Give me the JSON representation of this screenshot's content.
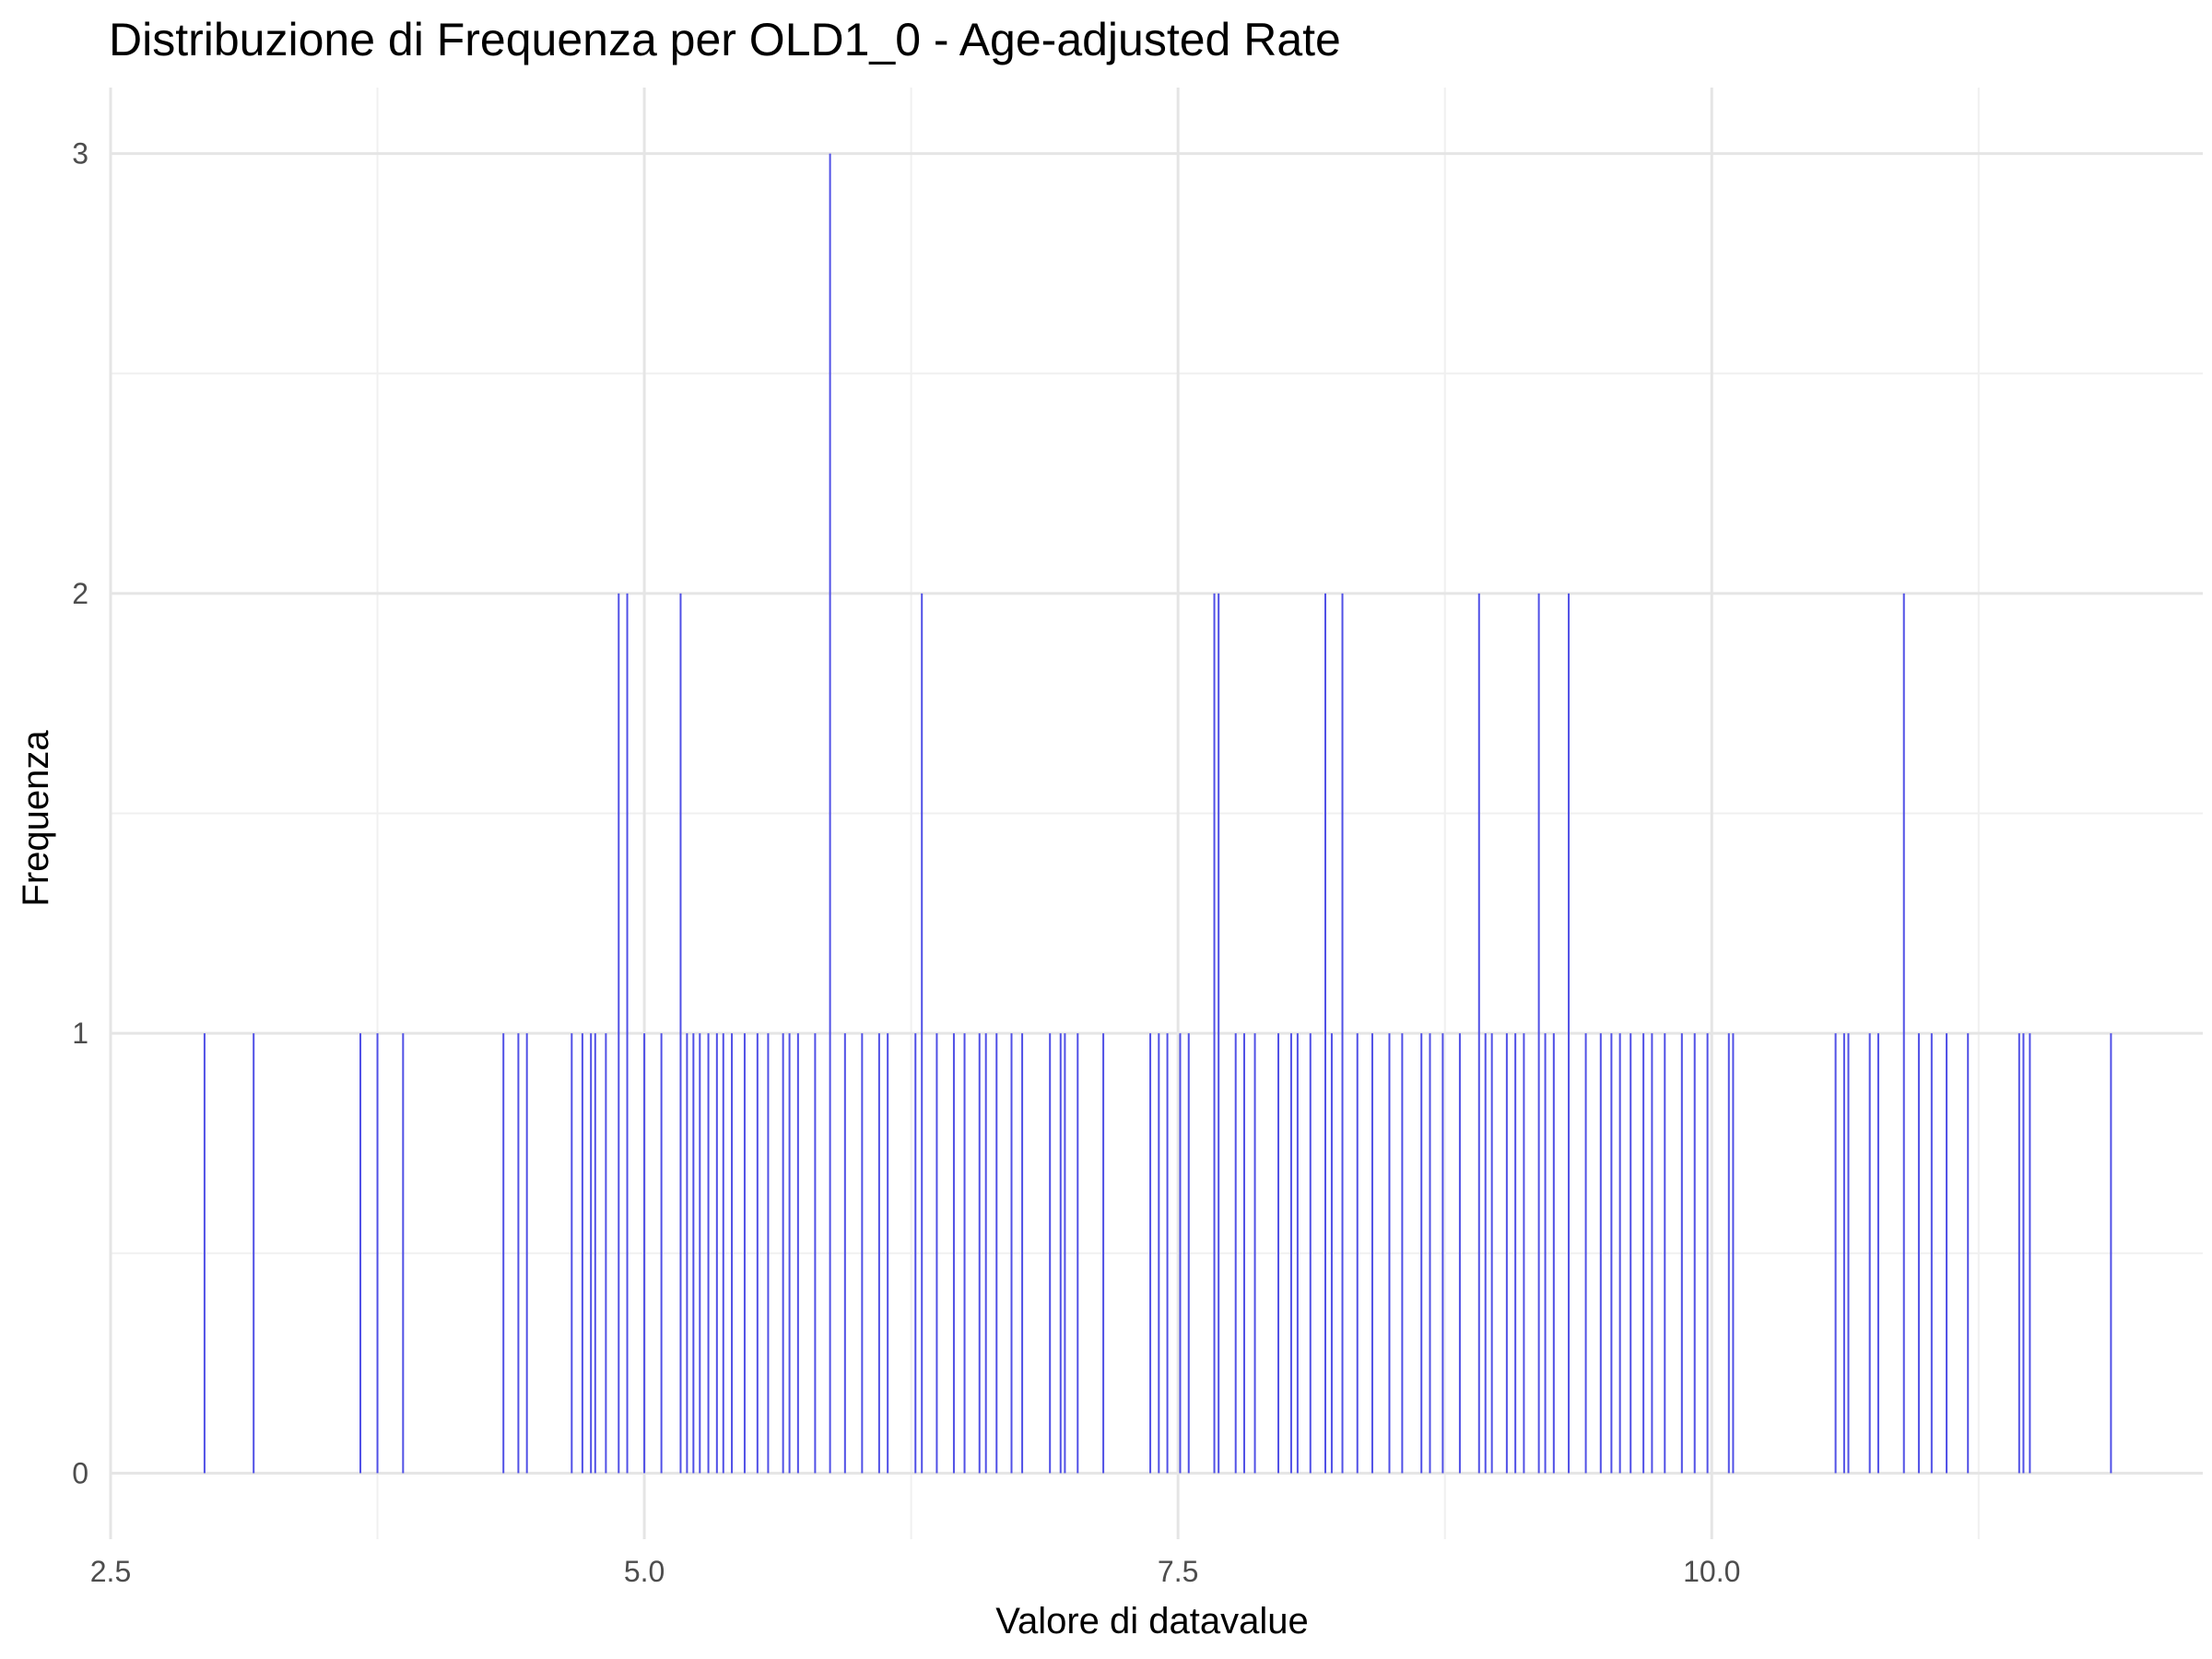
{
  "chart_data": {
    "type": "bar",
    "title": "Distribuzione di Frequenza per OLD1_0 - Age-adjusted Rate",
    "xlabel": "Valore di datavalue",
    "ylabel": "Frequenza",
    "xlim": [
      2.5,
      12.3
    ],
    "ylim": [
      -0.15,
      3.15
    ],
    "x_ticks": [
      2.5,
      5.0,
      7.5,
      10.0
    ],
    "x_tick_labels": [
      "2.5",
      "5.0",
      "7.5",
      "10.0"
    ],
    "y_ticks": [
      0,
      1,
      2,
      3
    ],
    "y_tick_labels": [
      "0",
      "1",
      "2",
      "3"
    ],
    "grid": true,
    "legend": "none",
    "bar_color": "#5050e6",
    "points": [
      {
        "x": 2.94,
        "y": 1
      },
      {
        "x": 3.17,
        "y": 1
      },
      {
        "x": 3.67,
        "y": 1
      },
      {
        "x": 3.75,
        "y": 1
      },
      {
        "x": 3.87,
        "y": 1
      },
      {
        "x": 4.34,
        "y": 1
      },
      {
        "x": 4.41,
        "y": 1
      },
      {
        "x": 4.45,
        "y": 1
      },
      {
        "x": 4.66,
        "y": 1
      },
      {
        "x": 4.71,
        "y": 1
      },
      {
        "x": 4.75,
        "y": 1
      },
      {
        "x": 4.77,
        "y": 1
      },
      {
        "x": 4.82,
        "y": 1
      },
      {
        "x": 4.88,
        "y": 2
      },
      {
        "x": 4.92,
        "y": 2
      },
      {
        "x": 5.0,
        "y": 1
      },
      {
        "x": 5.08,
        "y": 1
      },
      {
        "x": 5.17,
        "y": 2
      },
      {
        "x": 5.2,
        "y": 1
      },
      {
        "x": 5.23,
        "y": 1
      },
      {
        "x": 5.26,
        "y": 1
      },
      {
        "x": 5.3,
        "y": 1
      },
      {
        "x": 5.34,
        "y": 1
      },
      {
        "x": 5.37,
        "y": 1
      },
      {
        "x": 5.41,
        "y": 1
      },
      {
        "x": 5.47,
        "y": 1
      },
      {
        "x": 5.53,
        "y": 1
      },
      {
        "x": 5.58,
        "y": 1
      },
      {
        "x": 5.65,
        "y": 1
      },
      {
        "x": 5.68,
        "y": 1
      },
      {
        "x": 5.72,
        "y": 1
      },
      {
        "x": 5.8,
        "y": 1
      },
      {
        "x": 5.87,
        "y": 3
      },
      {
        "x": 5.94,
        "y": 1
      },
      {
        "x": 6.02,
        "y": 1
      },
      {
        "x": 6.1,
        "y": 1
      },
      {
        "x": 6.14,
        "y": 1
      },
      {
        "x": 6.27,
        "y": 1
      },
      {
        "x": 6.3,
        "y": 2
      },
      {
        "x": 6.37,
        "y": 1
      },
      {
        "x": 6.45,
        "y": 1
      },
      {
        "x": 6.5,
        "y": 1
      },
      {
        "x": 6.57,
        "y": 1
      },
      {
        "x": 6.6,
        "y": 1
      },
      {
        "x": 6.65,
        "y": 1
      },
      {
        "x": 6.72,
        "y": 1
      },
      {
        "x": 6.77,
        "y": 1
      },
      {
        "x": 6.9,
        "y": 1
      },
      {
        "x": 6.95,
        "y": 1
      },
      {
        "x": 6.97,
        "y": 1
      },
      {
        "x": 7.03,
        "y": 1
      },
      {
        "x": 7.15,
        "y": 1
      },
      {
        "x": 7.37,
        "y": 1
      },
      {
        "x": 7.41,
        "y": 1
      },
      {
        "x": 7.45,
        "y": 1
      },
      {
        "x": 7.51,
        "y": 1
      },
      {
        "x": 7.55,
        "y": 1
      },
      {
        "x": 7.67,
        "y": 2
      },
      {
        "x": 7.69,
        "y": 2
      },
      {
        "x": 7.77,
        "y": 1
      },
      {
        "x": 7.81,
        "y": 1
      },
      {
        "x": 7.86,
        "y": 1
      },
      {
        "x": 7.97,
        "y": 1
      },
      {
        "x": 8.03,
        "y": 1
      },
      {
        "x": 8.06,
        "y": 1
      },
      {
        "x": 8.12,
        "y": 1
      },
      {
        "x": 8.19,
        "y": 2
      },
      {
        "x": 8.22,
        "y": 1
      },
      {
        "x": 8.27,
        "y": 2
      },
      {
        "x": 8.34,
        "y": 1
      },
      {
        "x": 8.41,
        "y": 1
      },
      {
        "x": 8.49,
        "y": 1
      },
      {
        "x": 8.55,
        "y": 1
      },
      {
        "x": 8.64,
        "y": 1
      },
      {
        "x": 8.68,
        "y": 1
      },
      {
        "x": 8.74,
        "y": 1
      },
      {
        "x": 8.82,
        "y": 1
      },
      {
        "x": 8.91,
        "y": 2
      },
      {
        "x": 8.94,
        "y": 1
      },
      {
        "x": 8.97,
        "y": 1
      },
      {
        "x": 9.04,
        "y": 1
      },
      {
        "x": 9.08,
        "y": 1
      },
      {
        "x": 9.12,
        "y": 1
      },
      {
        "x": 9.19,
        "y": 2
      },
      {
        "x": 9.22,
        "y": 1
      },
      {
        "x": 9.26,
        "y": 1
      },
      {
        "x": 9.33,
        "y": 2
      },
      {
        "x": 9.41,
        "y": 1
      },
      {
        "x": 9.48,
        "y": 1
      },
      {
        "x": 9.53,
        "y": 1
      },
      {
        "x": 9.57,
        "y": 1
      },
      {
        "x": 9.62,
        "y": 1
      },
      {
        "x": 9.68,
        "y": 1
      },
      {
        "x": 9.72,
        "y": 1
      },
      {
        "x": 9.78,
        "y": 1
      },
      {
        "x": 9.86,
        "y": 1
      },
      {
        "x": 9.92,
        "y": 1
      },
      {
        "x": 9.98,
        "y": 1
      },
      {
        "x": 10.08,
        "y": 1
      },
      {
        "x": 10.1,
        "y": 1
      },
      {
        "x": 10.58,
        "y": 1
      },
      {
        "x": 10.62,
        "y": 1
      },
      {
        "x": 10.64,
        "y": 1
      },
      {
        "x": 10.74,
        "y": 1
      },
      {
        "x": 10.78,
        "y": 1
      },
      {
        "x": 10.9,
        "y": 2
      },
      {
        "x": 10.97,
        "y": 1
      },
      {
        "x": 11.03,
        "y": 1
      },
      {
        "x": 11.1,
        "y": 1
      },
      {
        "x": 11.2,
        "y": 1
      },
      {
        "x": 11.44,
        "y": 1
      },
      {
        "x": 11.46,
        "y": 1
      },
      {
        "x": 11.49,
        "y": 1
      },
      {
        "x": 11.87,
        "y": 1
      }
    ]
  }
}
